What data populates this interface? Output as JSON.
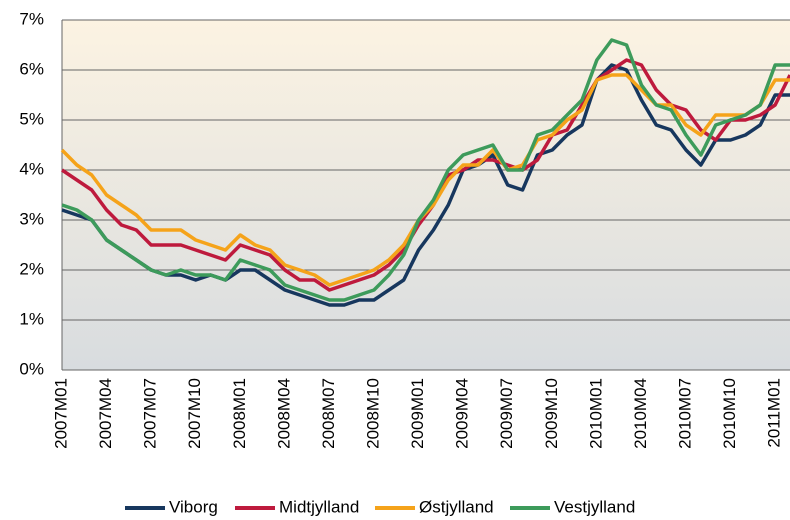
{
  "chart_data": {
    "type": "line",
    "categories": [
      "2007M01",
      null,
      null,
      "2007M04",
      null,
      null,
      "2007M07",
      null,
      null,
      "2007M10",
      null,
      null,
      "2008M01",
      null,
      null,
      "2008M04",
      null,
      null,
      "2008M07",
      null,
      null,
      "2008M10",
      null,
      null,
      "2009M01",
      null,
      null,
      "2009M04",
      null,
      null,
      "2009M07",
      null,
      null,
      "2009M10",
      null,
      null,
      "2010M01",
      null,
      null,
      "2010M04",
      null,
      null,
      "2010M07",
      null,
      null,
      "2010M10",
      null,
      null,
      "2011M01",
      null
    ],
    "series": [
      {
        "name": "Viborg",
        "color": "#17375e",
        "values": [
          3.2,
          3.1,
          3.0,
          2.6,
          2.4,
          2.2,
          2.0,
          1.9,
          1.9,
          1.8,
          1.9,
          1.8,
          2.0,
          2.0,
          1.8,
          1.6,
          1.5,
          1.4,
          1.3,
          1.3,
          1.4,
          1.4,
          1.6,
          1.8,
          2.4,
          2.8,
          3.3,
          4.0,
          4.1,
          4.3,
          3.7,
          3.6,
          4.3,
          4.4,
          4.7,
          4.9,
          5.8,
          6.1,
          6.0,
          5.4,
          4.9,
          4.8,
          4.4,
          4.1,
          4.6,
          4.6,
          4.7,
          4.9,
          5.5,
          5.5
        ]
      },
      {
        "name": "Midtjylland",
        "color": "#be1a3d",
        "values": [
          4.0,
          3.8,
          3.6,
          3.2,
          2.9,
          2.8,
          2.5,
          2.5,
          2.5,
          2.4,
          2.3,
          2.2,
          2.5,
          2.4,
          2.3,
          2.0,
          1.8,
          1.8,
          1.6,
          1.7,
          1.8,
          1.9,
          2.1,
          2.4,
          2.9,
          3.3,
          3.9,
          4.0,
          4.2,
          4.2,
          4.1,
          4.0,
          4.2,
          4.7,
          4.8,
          5.3,
          5.8,
          6.0,
          6.2,
          6.1,
          5.6,
          5.3,
          5.2,
          4.8,
          4.6,
          5.0,
          5.0,
          5.1,
          5.3,
          5.9
        ]
      },
      {
        "name": "Østjylland",
        "color": "#f5a31a",
        "values": [
          4.4,
          4.1,
          3.9,
          3.5,
          3.3,
          3.1,
          2.8,
          2.8,
          2.8,
          2.6,
          2.5,
          2.4,
          2.7,
          2.5,
          2.4,
          2.1,
          2.0,
          1.9,
          1.7,
          1.8,
          1.9,
          2.0,
          2.2,
          2.5,
          3.0,
          3.3,
          3.8,
          4.1,
          4.1,
          4.4,
          4.0,
          4.1,
          4.6,
          4.7,
          5.0,
          5.2,
          5.8,
          5.9,
          5.9,
          5.6,
          5.3,
          5.3,
          4.9,
          4.7,
          5.1,
          5.1,
          5.1,
          5.3,
          5.8,
          5.8
        ]
      },
      {
        "name": "Vestjylland",
        "color": "#3d9b5b",
        "values": [
          3.3,
          3.2,
          3.0,
          2.6,
          2.4,
          2.2,
          2.0,
          1.9,
          2.0,
          1.9,
          1.9,
          1.8,
          2.2,
          2.1,
          2.0,
          1.7,
          1.6,
          1.5,
          1.4,
          1.4,
          1.5,
          1.6,
          1.9,
          2.3,
          3.0,
          3.4,
          4.0,
          4.3,
          4.4,
          4.5,
          4.0,
          4.0,
          4.7,
          4.8,
          5.1,
          5.4,
          6.2,
          6.6,
          6.5,
          5.7,
          5.3,
          5.2,
          4.7,
          4.3,
          4.9,
          5.0,
          5.1,
          5.3,
          6.1,
          6.1
        ]
      }
    ],
    "ylim": [
      0,
      7
    ],
    "yticks": [
      {
        "value": 0,
        "label": "0%"
      },
      {
        "value": 1,
        "label": "1%"
      },
      {
        "value": 2,
        "label": "2%"
      },
      {
        "value": 3,
        "label": "3%"
      },
      {
        "value": 4,
        "label": "4%"
      },
      {
        "value": 5,
        "label": "5%"
      },
      {
        "value": 6,
        "label": "6%"
      },
      {
        "value": 7,
        "label": "7%"
      }
    ],
    "grid": true,
    "legend": "bottom"
  }
}
